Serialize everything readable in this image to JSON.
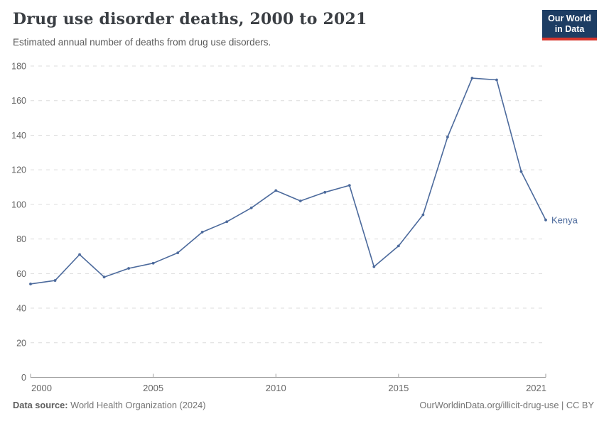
{
  "header": {
    "title": "Drug use disorder deaths, 2000 to 2021",
    "subtitle": "Estimated annual number of deaths from drug use disorders.",
    "logo": {
      "line1": "Our World",
      "line2": "in Data"
    }
  },
  "chart_data": {
    "type": "line",
    "title": "Drug use disorder deaths, 2000 to 2021",
    "xlabel": "",
    "ylabel": "",
    "xlim": [
      2000,
      2021
    ],
    "ylim": [
      0,
      180
    ],
    "yticks": [
      0,
      20,
      40,
      60,
      80,
      100,
      120,
      140,
      160,
      180
    ],
    "xticks": [
      2000,
      2005,
      2010,
      2015,
      2021
    ],
    "grid": "horizontal-dashed",
    "legend_position": "end-of-line-label",
    "x": [
      2000,
      2001,
      2002,
      2003,
      2004,
      2005,
      2006,
      2007,
      2008,
      2009,
      2010,
      2011,
      2012,
      2013,
      2014,
      2015,
      2016,
      2017,
      2018,
      2019,
      2020,
      2021
    ],
    "series": [
      {
        "name": "Kenya",
        "color": "#4C6A9C",
        "values": [
          54,
          56,
          71,
          58,
          63,
          66,
          72,
          84,
          90,
          98,
          108,
          102,
          107,
          111,
          64,
          76,
          94,
          139,
          173,
          172,
          119,
          91
        ]
      }
    ]
  },
  "footer": {
    "source_label": "Data source:",
    "source_value": "World Health Organization (2024)",
    "credit": "OurWorldinData.org/illicit-drug-use | CC BY"
  },
  "colors": {
    "line": "#4C6A9C",
    "grid": "#dcdcdc",
    "axis": "#9e9e9e",
    "tick_text": "#666666",
    "title_text": "#3a3e43",
    "subtitle_text": "#5b5b5b",
    "footer_text": "#757575",
    "logo_bg": "#1d3d63",
    "logo_accent": "#d7352c"
  }
}
